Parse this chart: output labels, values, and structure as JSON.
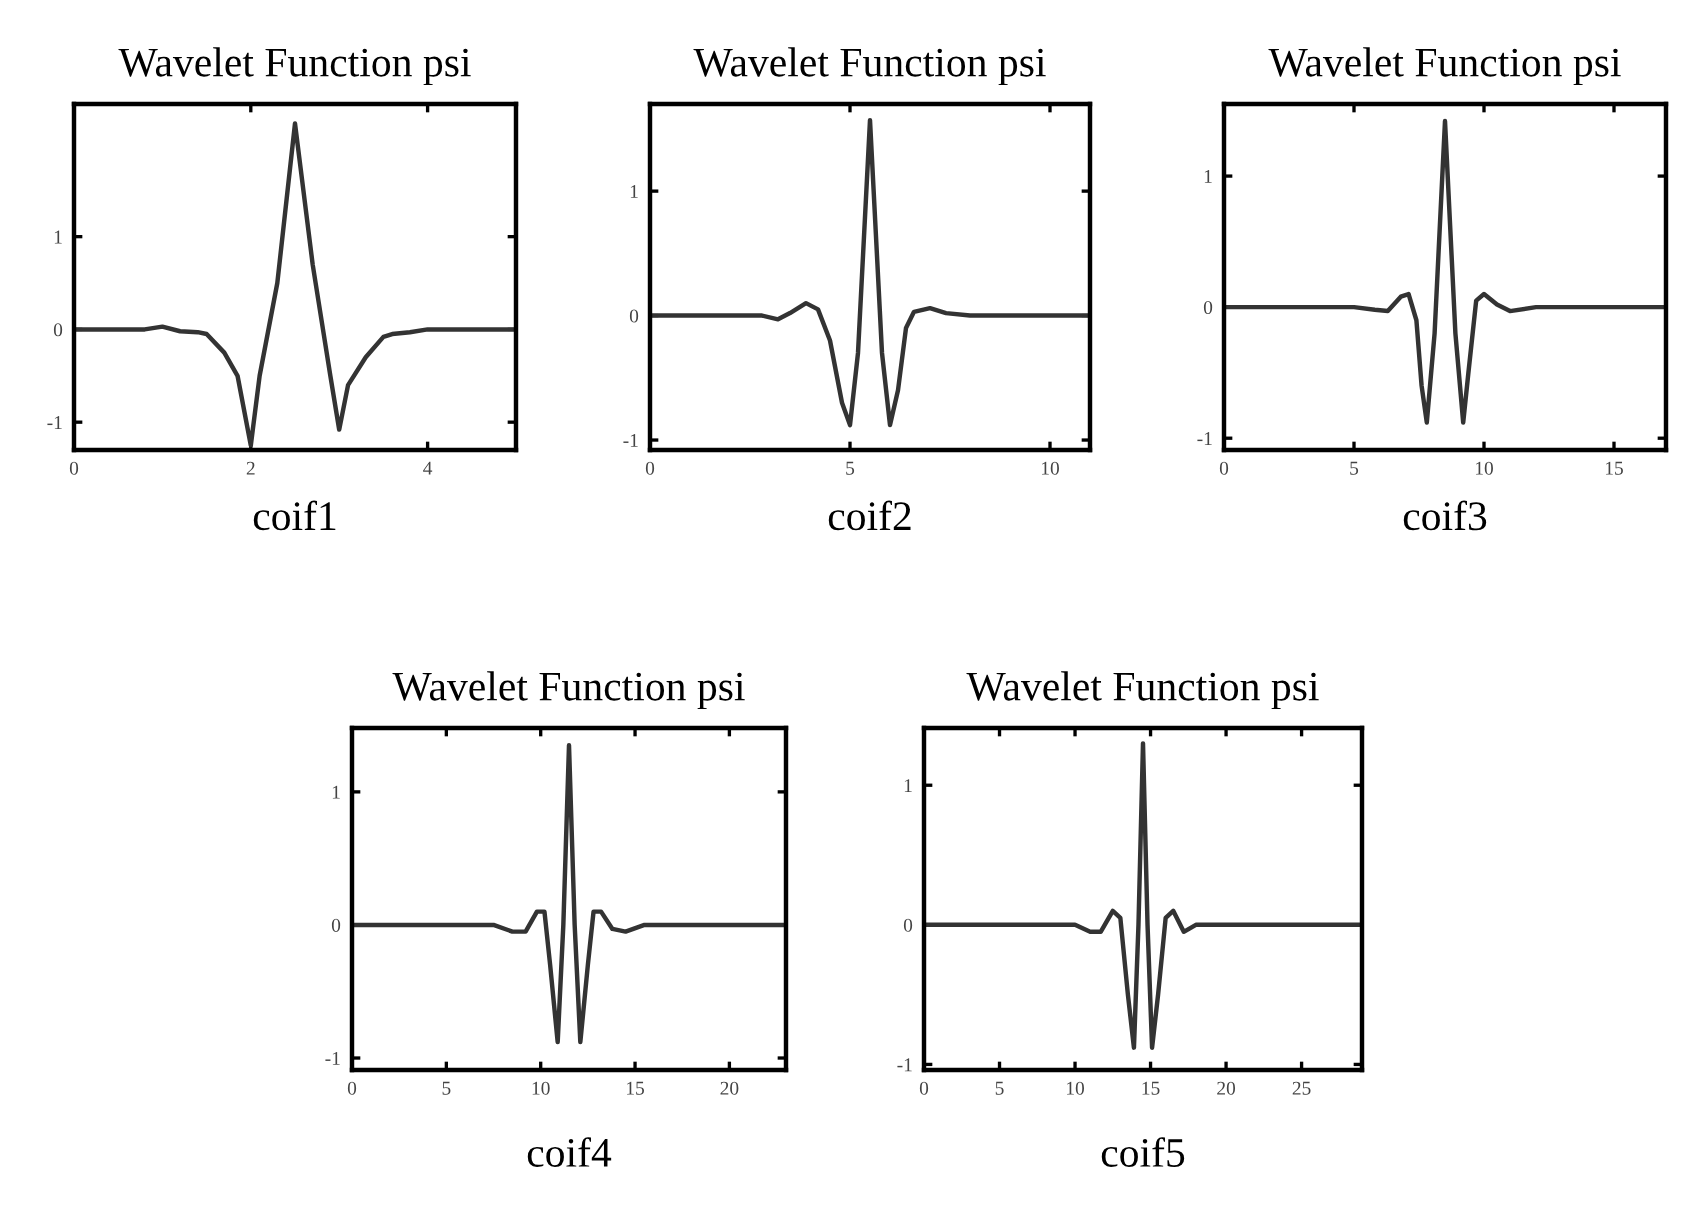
{
  "chart_data": [
    {
      "type": "line",
      "title": "Wavelet Function psi",
      "xlabel": "coif1",
      "xlim": [
        0,
        5
      ],
      "xticks": [
        0,
        2,
        4
      ],
      "ylim": [
        -1.3,
        2.43
      ],
      "yticks": [
        -1,
        0,
        1
      ],
      "grid": false,
      "series": [
        {
          "color": "#333333",
          "x": [
            0,
            0.8,
            1,
            1.2,
            1.4,
            1.5,
            1.7,
            1.85,
            2,
            2.1,
            2.3,
            2.5,
            2.7,
            2.9,
            3,
            3.1,
            3.3,
            3.5,
            3.6,
            3.8,
            4,
            5
          ],
          "values": [
            0,
            0,
            0.03,
            -0.02,
            -0.03,
            -0.05,
            -0.25,
            -0.5,
            -1.25,
            -0.5,
            0.5,
            2.22,
            0.7,
            -0.5,
            -1.08,
            -0.6,
            -0.3,
            -0.08,
            -0.05,
            -0.03,
            0,
            0
          ]
        }
      ]
    },
    {
      "type": "line",
      "title": "Wavelet Function psi",
      "xlabel": "coif2",
      "xlim": [
        0,
        11
      ],
      "xticks": [
        0,
        5,
        10
      ],
      "ylim": [
        -1.08,
        1.7
      ],
      "yticks": [
        -1,
        0,
        1
      ],
      "grid": false,
      "series": [
        {
          "color": "#333333",
          "x": [
            0,
            2.8,
            3.2,
            3.5,
            3.9,
            4.2,
            4.5,
            4.8,
            5,
            5.2,
            5.5,
            5.8,
            6,
            6.2,
            6.4,
            6.6,
            7,
            7.4,
            8,
            11
          ],
          "values": [
            0,
            0,
            -0.03,
            0.02,
            0.1,
            0.05,
            -0.2,
            -0.7,
            -0.88,
            -0.3,
            1.57,
            -0.3,
            -0.88,
            -0.6,
            -0.1,
            0.03,
            0.06,
            0.02,
            0,
            0
          ]
        }
      ]
    },
    {
      "type": "line",
      "title": "Wavelet Function psi",
      "xlabel": "coif3",
      "xlim": [
        0,
        17
      ],
      "xticks": [
        0,
        5,
        10,
        15
      ],
      "ylim": [
        -1.09,
        1.55
      ],
      "yticks": [
        -1,
        0,
        1
      ],
      "grid": false,
      "series": [
        {
          "color": "#333333",
          "x": [
            0,
            5,
            5.8,
            6.3,
            6.8,
            7.1,
            7.4,
            7.6,
            7.8,
            8.1,
            8.5,
            8.9,
            9.2,
            9.4,
            9.7,
            10,
            10.5,
            11,
            12,
            17
          ],
          "values": [
            0,
            0,
            -0.02,
            -0.03,
            0.08,
            0.1,
            -0.1,
            -0.6,
            -0.88,
            -0.2,
            1.42,
            -0.2,
            -0.88,
            -0.5,
            0.05,
            0.1,
            0.02,
            -0.03,
            0,
            0
          ]
        }
      ]
    },
    {
      "type": "line",
      "title": "Wavelet Function psi",
      "xlabel": "coif4",
      "xlim": [
        0,
        23
      ],
      "xticks": [
        0,
        5,
        10,
        15,
        20
      ],
      "ylim": [
        -1.09,
        1.48
      ],
      "yticks": [
        -1,
        0,
        1
      ],
      "grid": false,
      "series": [
        {
          "color": "#333333",
          "x": [
            0,
            7.5,
            8.5,
            9.2,
            9.8,
            10.2,
            10.5,
            10.9,
            11.2,
            11.5,
            11.8,
            12.1,
            12.5,
            12.8,
            13.2,
            13.8,
            14.5,
            15.5,
            23
          ],
          "values": [
            0,
            0,
            -0.05,
            -0.05,
            0.1,
            0.1,
            -0.3,
            -0.88,
            0,
            1.35,
            0,
            -0.88,
            -0.3,
            0.1,
            0.1,
            -0.03,
            -0.05,
            0,
            0
          ]
        }
      ]
    },
    {
      "type": "line",
      "title": "Wavelet Function psi",
      "xlabel": "coif5",
      "xlim": [
        0,
        29
      ],
      "xticks": [
        0,
        5,
        10,
        15,
        20,
        25
      ],
      "ylim": [
        -1.04,
        1.41
      ],
      "yticks": [
        -1,
        0,
        1
      ],
      "grid": false,
      "series": [
        {
          "color": "#333333",
          "x": [
            0,
            10,
            11,
            11.7,
            12.5,
            13,
            13.5,
            13.9,
            14.2,
            14.5,
            14.8,
            15.1,
            15.5,
            16,
            16.5,
            17.2,
            18,
            29
          ],
          "values": [
            0,
            0,
            -0.05,
            -0.05,
            0.1,
            0.05,
            -0.5,
            -0.88,
            0,
            1.3,
            0,
            -0.88,
            -0.5,
            0.05,
            0.1,
            -0.05,
            0,
            0
          ]
        }
      ]
    }
  ]
}
